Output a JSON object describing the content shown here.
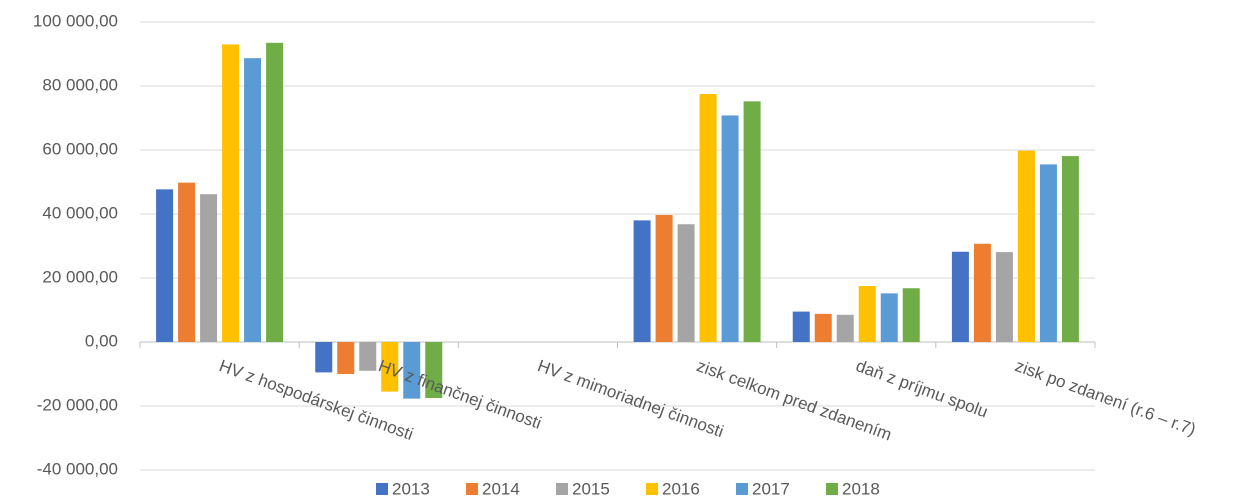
{
  "chart_data": {
    "type": "bar",
    "categories": [
      "HV  z hospodárskej  činnosti",
      "HV z finančnej činnosti",
      "HV z mimoriadnej činnosti",
      "zisk  celkom pred  zdanením",
      "daň z príjmu spolu",
      "zisk  po zdanení (r.6 – r.7)"
    ],
    "series": [
      {
        "name": "2013",
        "color": "#4472c4",
        "values": [
          47700,
          -9500,
          0,
          38000,
          9500,
          28200
        ]
      },
      {
        "name": "2014",
        "color": "#ed7d31",
        "values": [
          49800,
          -10000,
          0,
          39700,
          8800,
          30700
        ]
      },
      {
        "name": "2015",
        "color": "#a5a5a5",
        "values": [
          46200,
          -9000,
          0,
          36800,
          8500,
          28100
        ]
      },
      {
        "name": "2016",
        "color": "#ffc000",
        "values": [
          93000,
          -15500,
          0,
          77500,
          17500,
          59800
        ]
      },
      {
        "name": "2017",
        "color": "#5b9bd5",
        "values": [
          88700,
          -17700,
          0,
          70800,
          15200,
          55500
        ]
      },
      {
        "name": "2018",
        "color": "#70ad47",
        "values": [
          93500,
          -17500,
          0,
          75200,
          16800,
          58100
        ]
      }
    ],
    "ylim": [
      -40000,
      100000
    ],
    "yticks": [
      {
        "value": -40000,
        "label": "-40 000,00"
      },
      {
        "value": -20000,
        "label": "-20 000,00"
      },
      {
        "value": 0,
        "label": "0,00"
      },
      {
        "value": 20000,
        "label": "20 000,00"
      },
      {
        "value": 40000,
        "label": "40 000,00"
      },
      {
        "value": 60000,
        "label": "60 000,00"
      },
      {
        "value": 80000,
        "label": "80 000,00"
      },
      {
        "value": 100000,
        "label": "100 000,00"
      }
    ],
    "grid": true,
    "legend": "bottom"
  }
}
